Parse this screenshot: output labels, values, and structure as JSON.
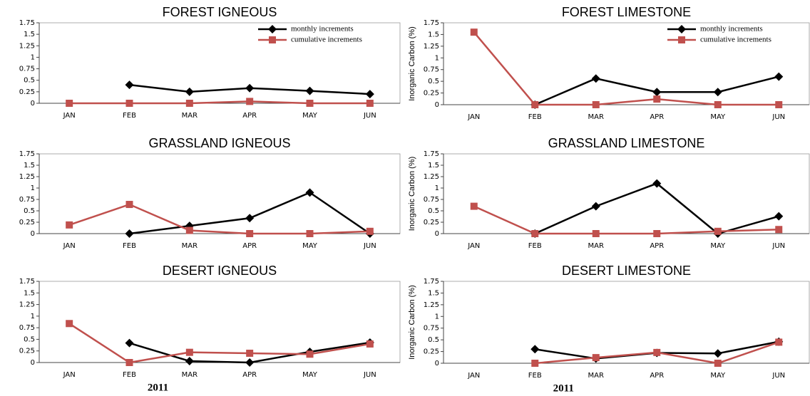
{
  "chart_data": [
    {
      "type": "line",
      "title": "FOREST IGNEOUS",
      "categories": [
        "JAN",
        "FEB",
        "MAR",
        "APR",
        "MAY",
        "JUN"
      ],
      "series": [
        {
          "name": "monthly increments",
          "color": "#000000",
          "values": [
            null,
            0.4,
            0.25,
            0.33,
            0.27,
            0.2
          ]
        },
        {
          "name": "cumulative increments",
          "color": "#c0504d",
          "values": [
            0,
            0,
            0,
            0.04,
            0,
            0
          ]
        }
      ],
      "ylim": [
        0,
        1.75
      ],
      "yticks": [
        0,
        0.25,
        0.5,
        0.75,
        1,
        1.25,
        1.5,
        1.75
      ],
      "legend": "top-right"
    },
    {
      "type": "line",
      "title": "FOREST LIMESTONE",
      "categories": [
        "JAN",
        "FEB",
        "MAR",
        "APR",
        "MAY",
        "JUN"
      ],
      "series": [
        {
          "name": "monthly increments",
          "color": "#000000",
          "values": [
            null,
            0,
            0.56,
            0.27,
            0.27,
            0.6
          ]
        },
        {
          "name": "cumulative increments",
          "color": "#c0504d",
          "values": [
            1.55,
            0,
            0,
            0.12,
            0,
            0
          ]
        }
      ],
      "ylim": [
        0,
        1.75
      ],
      "yticks": [
        0,
        0.25,
        0.5,
        0.75,
        1,
        1.25,
        1.5,
        1.75
      ],
      "ylabel": "Inorganic Carbon (%)",
      "legend": "top-right"
    },
    {
      "type": "line",
      "title": "GRASSLAND IGNEOUS",
      "categories": [
        "JAN",
        "FEB",
        "MAR",
        "APR",
        "MAY",
        "JUN"
      ],
      "series": [
        {
          "color": "#000000",
          "values": [
            null,
            0,
            0.17,
            0.34,
            0.9,
            0
          ]
        },
        {
          "color": "#c0504d",
          "values": [
            0.19,
            0.64,
            0.07,
            0,
            0,
            0.05
          ]
        }
      ],
      "ylim": [
        0,
        1.75
      ],
      "yticks": [
        0,
        0.25,
        0.5,
        0.75,
        1,
        1.25,
        1.5,
        1.75
      ]
    },
    {
      "type": "line",
      "title": "GRASSLAND LIMESTONE",
      "categories": [
        "JAN",
        "FEB",
        "MAR",
        "APR",
        "MAY",
        "JUN"
      ],
      "series": [
        {
          "color": "#000000",
          "values": [
            null,
            0,
            0.6,
            1.1,
            0,
            0.38
          ]
        },
        {
          "color": "#c0504d",
          "values": [
            0.6,
            0,
            0,
            0,
            0.05,
            0.09
          ]
        }
      ],
      "ylim": [
        0,
        1.75
      ],
      "yticks": [
        0,
        0.25,
        0.5,
        0.75,
        1,
        1.25,
        1.5,
        1.75
      ],
      "ylabel": "Inorganic Carbon (%)"
    },
    {
      "type": "line",
      "title": "DESERT IGNEOUS",
      "categories": [
        "JAN",
        "FEB",
        "MAR",
        "APR",
        "MAY",
        "JUN"
      ],
      "series": [
        {
          "color": "#000000",
          "values": [
            null,
            0.42,
            0.03,
            0,
            0.23,
            0.43
          ]
        },
        {
          "color": "#c0504d",
          "values": [
            0.84,
            0,
            0.22,
            0.2,
            0.18,
            0.4
          ]
        }
      ],
      "ylim": [
        0,
        1.75
      ],
      "yticks": [
        0,
        0.25,
        0.5,
        0.75,
        1,
        1.25,
        1.5,
        1.75
      ],
      "xlabel": "2011"
    },
    {
      "type": "line",
      "title": "DESERT LIMESTONE",
      "categories": [
        "JAN",
        "FEB",
        "MAR",
        "APR",
        "MAY",
        "JUN"
      ],
      "series": [
        {
          "color": "#000000",
          "values": [
            null,
            0.3,
            0.1,
            0.22,
            0.21,
            0.46
          ]
        },
        {
          "color": "#c0504d",
          "values": [
            null,
            0,
            0.12,
            0.23,
            0,
            0.45
          ]
        }
      ],
      "ylim": [
        0,
        1.75
      ],
      "yticks": [
        0,
        0.25,
        0.5,
        0.75,
        1,
        1.25,
        1.5,
        1.75
      ],
      "ylabel": "Inorganic Carbon (%)",
      "xlabel": "2011"
    }
  ]
}
